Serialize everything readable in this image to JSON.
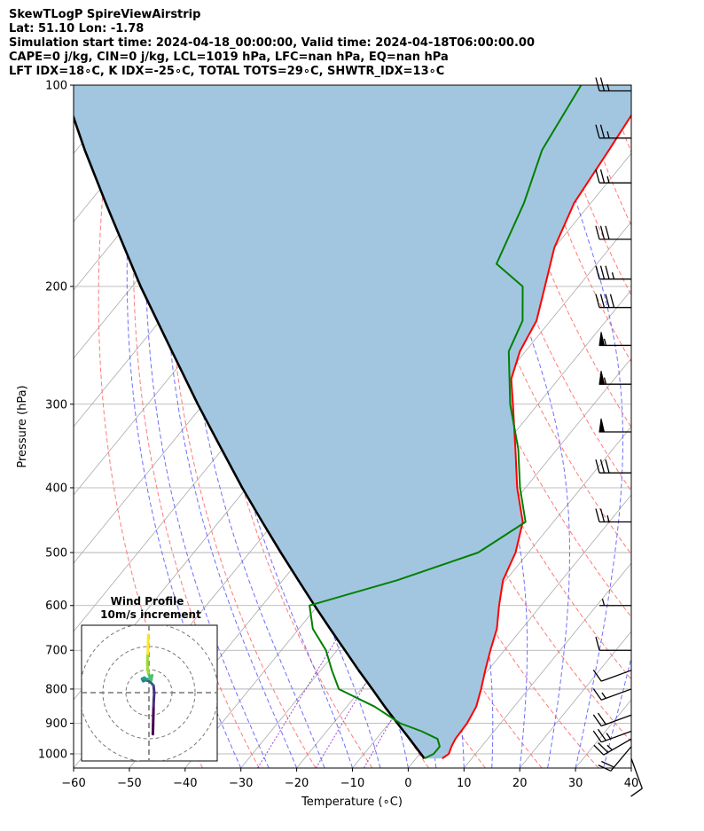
{
  "header": {
    "line1": "SkewTLogP SpireViewAirstrip",
    "line2": "Lat: 51.10   Lon: -1.78",
    "line3": "Simulation start time: 2024-04-18_00:00:00, Valid time: 2024-04-18T06:00:00.00",
    "line4": "CAPE=0 j/kg, CIN=0 j/kg, LCL=1019 hPa, LFC=nan hPa, EQ=nan hPa",
    "line5": "LFT IDX=18∘C, K IDX=-25∘C, TOTAL TOTS=29∘C, SHWTR_IDX=13∘C"
  },
  "chart_data": {
    "type": "line",
    "subtype": "skew-t log-p",
    "xlabel": "Temperature (∘C)",
    "ylabel": "Pressure (hPa)",
    "xlim": [
      -60,
      40
    ],
    "ylim": [
      1050,
      100
    ],
    "xticks": [
      "−60",
      "−50",
      "−40",
      "−30",
      "−20",
      "−10",
      "0",
      "10",
      "20",
      "30",
      "40"
    ],
    "yticks": [
      "100",
      "200",
      "300",
      "400",
      "500",
      "600",
      "700",
      "800",
      "900",
      "1000"
    ],
    "x_tick_values": [
      -60,
      -50,
      -40,
      -30,
      -20,
      -10,
      0,
      10,
      20,
      30,
      40
    ],
    "y_tick_values": [
      100,
      200,
      300,
      400,
      500,
      600,
      700,
      800,
      900,
      1000
    ],
    "colors": {
      "temperature": "#ff0000",
      "dewpoint": "#008000",
      "parcel": "#000000",
      "shade": "#a2c6e0",
      "dry_adiabat": "#ff6b6b",
      "moist_adiabat": "#5555ff",
      "isotherm": "#aaaaaa",
      "mixing_ratio": "#9932cc"
    },
    "series": [
      {
        "name": "Temperature",
        "unit": "∘C",
        "points": [
          [
            1016,
            4.7
          ],
          [
            1000,
            5.2
          ],
          [
            975,
            4.6
          ],
          [
            950,
            4.2
          ],
          [
            925,
            4.1
          ],
          [
            900,
            4.0
          ],
          [
            850,
            3.2
          ],
          [
            800,
            1.5
          ],
          [
            750,
            -0.5
          ],
          [
            700,
            -2.5
          ],
          [
            650,
            -4.5
          ],
          [
            600,
            -7.5
          ],
          [
            550,
            -10.5
          ],
          [
            500,
            -12.3
          ],
          [
            450,
            -15.5
          ],
          [
            400,
            -21.5
          ],
          [
            350,
            -27.5
          ],
          [
            300,
            -34.5
          ],
          [
            275,
            -38.5
          ],
          [
            250,
            -41.0
          ],
          [
            225,
            -42.5
          ],
          [
            200,
            -46.0
          ],
          [
            175,
            -50.0
          ],
          [
            150,
            -53.0
          ],
          [
            125,
            -54.5
          ],
          [
            100,
            -56.5
          ]
        ]
      },
      {
        "name": "Dewpoint",
        "unit": "∘C",
        "points": [
          [
            1016,
            1.5
          ],
          [
            1000,
            2.5
          ],
          [
            975,
            2.5
          ],
          [
            950,
            1.0
          ],
          [
            925,
            -3.0
          ],
          [
            900,
            -8.0
          ],
          [
            850,
            -15.0
          ],
          [
            800,
            -24.0
          ],
          [
            750,
            -28.0
          ],
          [
            700,
            -32.0
          ],
          [
            650,
            -37.5
          ],
          [
            600,
            -41.5
          ],
          [
            550,
            -29.5
          ],
          [
            500,
            -19.0
          ],
          [
            450,
            -15.0
          ],
          [
            400,
            -21.0
          ],
          [
            350,
            -27.0
          ],
          [
            300,
            -35.0
          ],
          [
            250,
            -43.0
          ],
          [
            225,
            -45.0
          ],
          [
            200,
            -50.0
          ],
          [
            185,
            -58.0
          ],
          [
            150,
            -62.0
          ],
          [
            125,
            -66.5
          ],
          [
            100,
            -69.0
          ]
        ]
      },
      {
        "name": "Parcel",
        "unit": "∘C",
        "points": [
          [
            1016,
            1.5
          ],
          [
            1000,
            0.2
          ],
          [
            950,
            -4.0
          ],
          [
            900,
            -8.5
          ],
          [
            850,
            -13.2
          ],
          [
            800,
            -18.0
          ],
          [
            750,
            -23.2
          ],
          [
            700,
            -28.6
          ],
          [
            650,
            -34.4
          ],
          [
            600,
            -40.6
          ],
          [
            550,
            -47.2
          ],
          [
            500,
            -54.4
          ],
          [
            450,
            -62.2
          ],
          [
            400,
            -70.8
          ],
          [
            350,
            -80.2
          ],
          [
            300,
            -91.0
          ],
          [
            250,
            -103.4
          ],
          [
            200,
            -118.5
          ],
          [
            150,
            -137.0
          ],
          [
            125,
            -148.5
          ],
          [
            100,
            -162.0
          ]
        ]
      }
    ],
    "wind_barbs": [
      {
        "p": 1016,
        "speed_kt": 10,
        "dir_deg": 160
      },
      {
        "p": 975,
        "speed_kt": 20,
        "dir_deg": 220
      },
      {
        "p": 950,
        "speed_kt": 25,
        "dir_deg": 240
      },
      {
        "p": 925,
        "speed_kt": 25,
        "dir_deg": 250
      },
      {
        "p": 875,
        "speed_kt": 20,
        "dir_deg": 250
      },
      {
        "p": 800,
        "speed_kt": 15,
        "dir_deg": 250
      },
      {
        "p": 750,
        "speed_kt": 10,
        "dir_deg": 250
      },
      {
        "p": 700,
        "speed_kt": 10,
        "dir_deg": 270
      },
      {
        "p": 600,
        "speed_kt": 5,
        "dir_deg": 270
      },
      {
        "p": 450,
        "speed_kt": 25,
        "dir_deg": 270
      },
      {
        "p": 380,
        "speed_kt": 30,
        "dir_deg": 270
      },
      {
        "p": 330,
        "speed_kt": 50,
        "dir_deg": 270
      },
      {
        "p": 280,
        "speed_kt": 55,
        "dir_deg": 270
      },
      {
        "p": 245,
        "speed_kt": 55,
        "dir_deg": 270
      },
      {
        "p": 215,
        "speed_kt": 40,
        "dir_deg": 270
      },
      {
        "p": 195,
        "speed_kt": 35,
        "dir_deg": 270
      },
      {
        "p": 170,
        "speed_kt": 30,
        "dir_deg": 270
      },
      {
        "p": 140,
        "speed_kt": 25,
        "dir_deg": 270
      },
      {
        "p": 120,
        "speed_kt": 25,
        "dir_deg": 270
      },
      {
        "p": 102,
        "speed_kt": 25,
        "dir_deg": 270
      }
    ],
    "hodograph": {
      "title_line1": "Wind Profile",
      "title_line2": "10m/s increment",
      "rings": [
        10,
        20,
        30
      ],
      "points": [
        [
          1.7,
          -18.0
        ],
        [
          1.8,
          -14.0
        ],
        [
          1.9,
          -10.0
        ],
        [
          2.0,
          -6.0
        ],
        [
          2.1,
          -3.0
        ],
        [
          2.3,
          0.0
        ],
        [
          2.0,
          3.0
        ],
        [
          0.3,
          5.0
        ],
        [
          -0.5,
          5.2
        ],
        [
          -1.5,
          5.4
        ],
        [
          -2.5,
          5.0
        ],
        [
          -3.0,
          6.0
        ],
        [
          -2.0,
          6.5
        ],
        [
          -1.0,
          5.8
        ],
        [
          0.2,
          6.0
        ],
        [
          1.4,
          7.5
        ],
        [
          1.0,
          5.5
        ],
        [
          -0.3,
          8.5
        ],
        [
          -0.6,
          10.0
        ],
        [
          -0.7,
          13.0
        ],
        [
          -0.5,
          17.0
        ],
        [
          -0.4,
          20.0
        ],
        [
          -0.3,
          25.0
        ]
      ]
    }
  }
}
